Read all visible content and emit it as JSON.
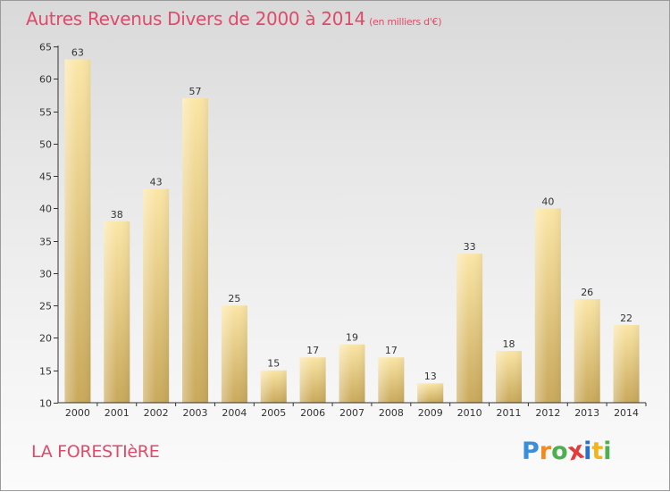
{
  "title": "Autres Revenus Divers de 2000 à 2014",
  "subtitle": "(en milliers d'€)",
  "place": "LA FORESTIèRE",
  "logo": {
    "letters": [
      "P",
      "r",
      "o",
      "x",
      "i",
      "t",
      "i"
    ],
    "colors": [
      "#3a8fd8",
      "#f28a1e",
      "#4caf50",
      "#e23b3b",
      "#2a6fc9",
      "#f2b31e",
      "#4caf50"
    ]
  },
  "colors": {
    "title": "#e04a6a",
    "bar_light": "#fbe6a6",
    "bar_dark": "#c9a95b"
  },
  "chart_data": {
    "type": "bar",
    "categories": [
      "2000",
      "2001",
      "2002",
      "2003",
      "2004",
      "2005",
      "2006",
      "2007",
      "2008",
      "2009",
      "2010",
      "2011",
      "2012",
      "2013",
      "2014"
    ],
    "values": [
      63,
      38,
      43,
      57,
      25,
      15,
      17,
      19,
      17,
      13,
      33,
      18,
      40,
      26,
      22
    ],
    "ylim": [
      10,
      65
    ],
    "yticks": [
      10,
      15,
      20,
      25,
      30,
      35,
      40,
      45,
      50,
      55,
      60,
      65
    ],
    "grid": false,
    "legend": "none"
  }
}
